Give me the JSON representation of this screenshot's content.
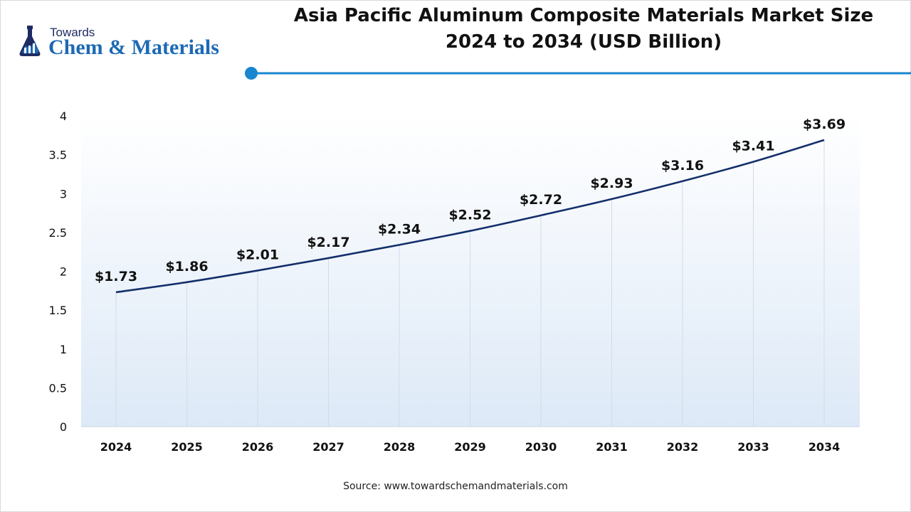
{
  "logo": {
    "line1": "Towards",
    "line2": "Chem & Materials",
    "icon": "flask-chart-icon"
  },
  "title_lines": [
    "Asia Pacific Aluminum Composite Materials Market Size",
    "2024 to 2034 (USD Billion)"
  ],
  "source": "Source: www.towardschemandmaterials.com",
  "colors": {
    "line": "#132f6b",
    "accent": "#1a86d0",
    "brand": "#1d69b4",
    "plot_bg_top": "#ffffff",
    "plot_bg_bottom": "#dde9f7"
  },
  "chart_data": {
    "type": "line",
    "title": "Asia Pacific Aluminum Composite Materials Market Size 2024 to 2034 (USD Billion)",
    "xlabel": "",
    "ylabel": "",
    "x": [
      "2024",
      "2025",
      "2026",
      "2027",
      "2028",
      "2029",
      "2030",
      "2031",
      "2032",
      "2033",
      "2034"
    ],
    "series": [
      {
        "values": [
          1.73,
          1.86,
          2.01,
          2.17,
          2.34,
          2.52,
          2.72,
          2.93,
          3.16,
          3.41,
          3.69
        ],
        "data_labels": [
          "$1.73",
          "$1.86",
          "$2.01",
          "$2.17",
          "$2.34",
          "$2.52",
          "$2.72",
          "$2.93",
          "$3.16",
          "$3.41",
          "$3.69"
        ]
      }
    ],
    "ylim": [
      0,
      4
    ],
    "yticks": [
      "0",
      "0.5",
      "1",
      "1.5",
      "2",
      "2.5",
      "3",
      "3.5",
      "4"
    ],
    "grid": "vertical",
    "legend": "none"
  }
}
